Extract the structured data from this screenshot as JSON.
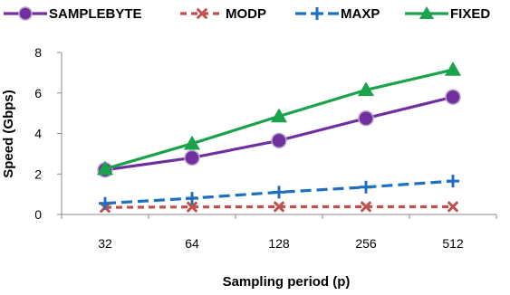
{
  "chart_data": {
    "type": "line",
    "title": "",
    "xlabel": "Sampling period (p)",
    "ylabel": "Speed (Gbps)",
    "categories": [
      "32",
      "64",
      "128",
      "256",
      "512"
    ],
    "ylim": [
      0,
      8
    ],
    "yticks": [
      "0",
      "2",
      "4",
      "6",
      "8"
    ],
    "grid": false,
    "legend_position": "top",
    "series": [
      {
        "name": "SAMPLEBYTE",
        "values": [
          2.2,
          2.8,
          3.65,
          4.75,
          5.8
        ],
        "color": "#7030a0",
        "dash": "solid",
        "marker": "circle"
      },
      {
        "name": "MODP",
        "values": [
          0.35,
          0.37,
          0.38,
          0.38,
          0.38
        ],
        "color": "#c0504d",
        "dash": "short-dash",
        "marker": "x"
      },
      {
        "name": "MAXP",
        "values": [
          0.55,
          0.8,
          1.1,
          1.35,
          1.65
        ],
        "color": "#1f6fbf",
        "dash": "long-dash",
        "marker": "plus"
      },
      {
        "name": "FIXED",
        "values": [
          2.25,
          3.5,
          4.85,
          6.15,
          7.15
        ],
        "color": "#1aa34a",
        "dash": "solid",
        "marker": "triangle"
      }
    ]
  }
}
